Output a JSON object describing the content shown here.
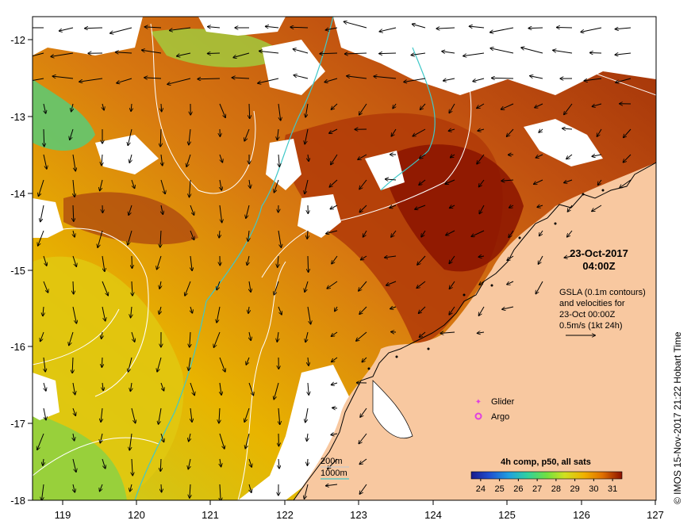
{
  "date_label": "23-Oct-2017",
  "time_label": "04:00Z",
  "gsla_note": [
    "GSLA (0.1m contours)",
    "and velocities for",
    "23-Oct 00:00Z",
    "0.5m/s (1kt 24h)"
  ],
  "legend": {
    "glider": "Glider",
    "argo": "Argo",
    "glider_color": "#e040e0",
    "argo_color": "#e040e0"
  },
  "isobaths": {
    "depth_200": "200m",
    "depth_1000": "1000m",
    "color_200": "#c8c8c8",
    "color_1000": "#40c8c8"
  },
  "colorbar": {
    "title": "4h comp, p50, all sats",
    "ticks": [
      "24",
      "25",
      "26",
      "27",
      "28",
      "29",
      "30",
      "31"
    ],
    "range": [
      23.5,
      31.5
    ],
    "colors": [
      "#1a1a8c",
      "#1f4fd0",
      "#1fa0e0",
      "#30d0a0",
      "#70e040",
      "#d0e020",
      "#f0b000",
      "#e07000",
      "#c03000",
      "#8b1000"
    ]
  },
  "credit": "© IMOS 15-Nov-2017 21:22 Hobart Time",
  "x_axis": {
    "ticks": [
      "119",
      "120",
      "121",
      "122",
      "123",
      "124",
      "125",
      "126",
      "127"
    ]
  },
  "y_axis": {
    "ticks": [
      "-12",
      "-13",
      "-14",
      "-15",
      "-16",
      "-17",
      "-18"
    ]
  },
  "colors": {
    "land": "#f8c8a0",
    "no_data": "#ffffff",
    "sst_warm": "#d06010",
    "sst_hot": "#9a1a00",
    "sst_cool": "#e8c000"
  }
}
